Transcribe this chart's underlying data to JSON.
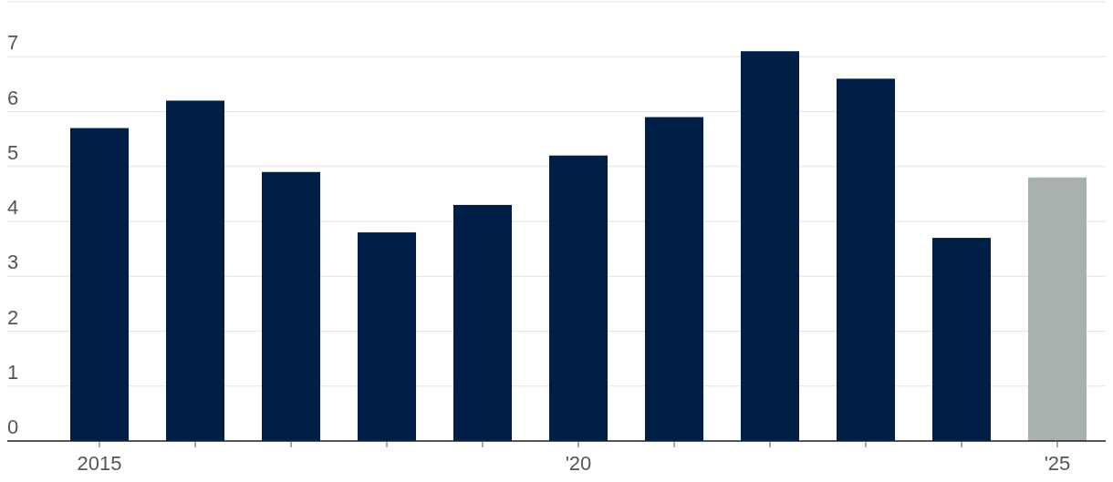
{
  "chart_data": {
    "type": "bar",
    "categories": [
      "2015",
      null,
      null,
      null,
      null,
      "'20",
      null,
      null,
      null,
      null,
      "'25"
    ],
    "values": [
      5.7,
      6.2,
      4.9,
      3.8,
      4.3,
      5.2,
      5.9,
      7.1,
      6.6,
      3.7,
      4.8
    ],
    "colors": [
      "#001f47",
      "#001f47",
      "#001f47",
      "#001f47",
      "#001f47",
      "#001f47",
      "#001f47",
      "#001f47",
      "#001f47",
      "#001f47",
      "#a9b0b0"
    ],
    "ylim": [
      0,
      8
    ],
    "yticks": [
      0,
      1,
      2,
      3,
      4,
      5,
      6,
      7,
      {
        "value": 8,
        "label": null
      }
    ],
    "grid": "y"
  }
}
